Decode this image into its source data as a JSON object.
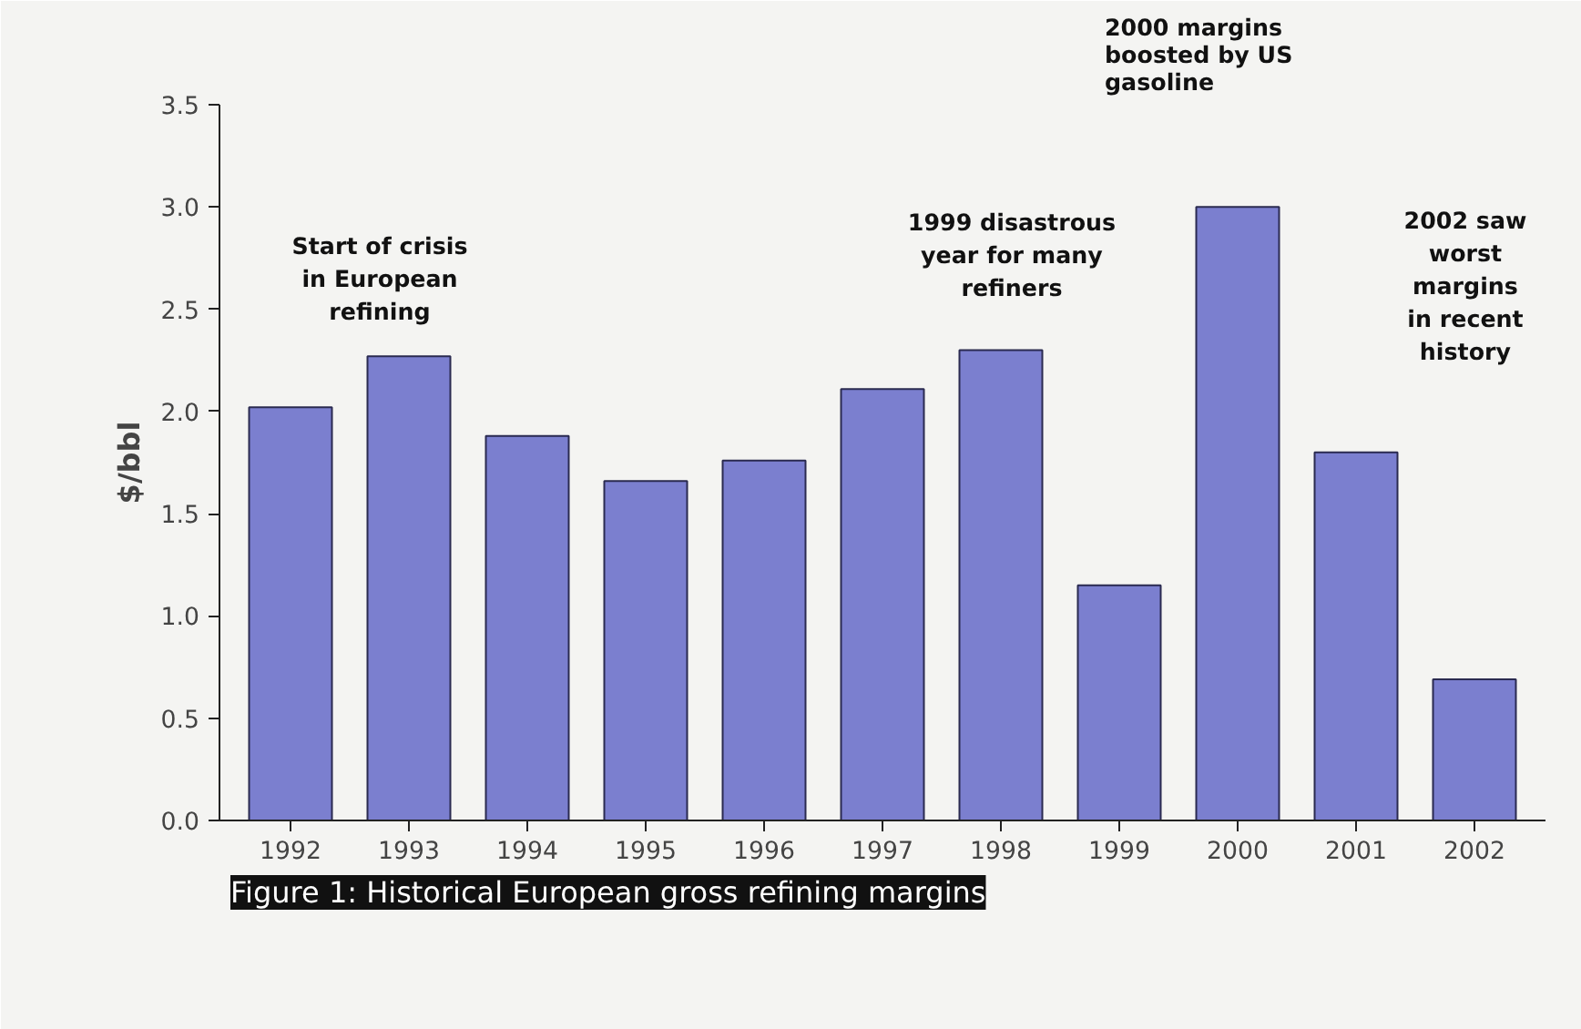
{
  "chart_data": {
    "type": "bar",
    "title": "Figure 1: Historical European gross refining margins",
    "ylabel": "$/bbl",
    "categories": [
      "1992",
      "1993",
      "1994",
      "1995",
      "1996",
      "1997",
      "1998",
      "1999",
      "2000",
      "2001",
      "2002"
    ],
    "values": [
      2.02,
      2.27,
      1.88,
      1.66,
      1.76,
      2.11,
      2.3,
      1.15,
      3.0,
      1.8,
      0.69
    ],
    "color": "#7b7fcf",
    "ylim": [
      0,
      3.5
    ],
    "yticks": [
      {
        "value": 0,
        "label": "0.0"
      },
      0.5,
      {
        "value": 1,
        "label": "1.0"
      },
      1.5,
      {
        "value": 2,
        "label": "2.0"
      },
      2.5,
      {
        "value": 3,
        "label": "3.0"
      },
      3.5
    ],
    "grid": false,
    "annotations": [
      "Start of crisis\nin European\nrefining",
      "1999 disastrous\nyear for many\nrefiners",
      "2000 margins\nboosted by US\ngasoline",
      "2002 saw\nworst\nmargins\nin recent\nhistory"
    ]
  }
}
